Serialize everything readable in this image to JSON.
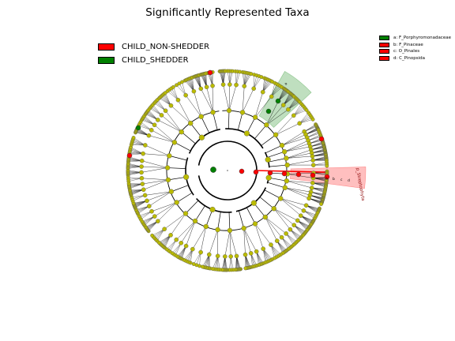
{
  "title": "Significantly Represented Taxa",
  "legend": [
    {
      "label": "CHILD_NON-SHEDDER",
      "color": "#ff0000"
    },
    {
      "label": "CHILD_SHEDDER",
      "color": "#008000"
    }
  ],
  "clade_legend": [
    {
      "label": "a: F_Porphyromonadaceae",
      "color": "#008000"
    },
    {
      "label": "b: F_Pinaceae",
      "color": "#ff0000"
    },
    {
      "label": "c: O_Pinales",
      "color": "#ff0000"
    },
    {
      "label": "d: C_Pinopsida",
      "color": "#ff0000"
    }
  ],
  "chart_data": {
    "type": "cladogram",
    "title": "Significantly Represented Taxa",
    "groups": [
      "CHILD_NON-SHEDDER",
      "CHILD_SHEDDER"
    ],
    "group_colors": {
      "CHILD_NON-SHEDDER": "#ff0000",
      "CHILD_SHEDDER": "#008000",
      "non_significant": "#bbbb00"
    },
    "highlighted_clades": [
      {
        "letter": "a",
        "label": "F_Porphyromonadaceae",
        "group": "CHILD_SHEDDER"
      },
      {
        "letter": "b",
        "label": "F_Pinaceae",
        "group": "CHILD_NON-SHEDDER"
      },
      {
        "letter": "c",
        "label": "O_Pinales",
        "group": "CHILD_NON-SHEDDER"
      },
      {
        "letter": "d",
        "label": "C_Pinopsida",
        "group": "CHILD_NON-SHEDDER"
      },
      {
        "letter": "",
        "label": "p_Streptophyta",
        "group": "CHILD_NON-SHEDDER"
      }
    ],
    "clade_tags": [
      "a",
      "b",
      "c",
      "d"
    ],
    "sector_label": "p_Streptophyta"
  }
}
